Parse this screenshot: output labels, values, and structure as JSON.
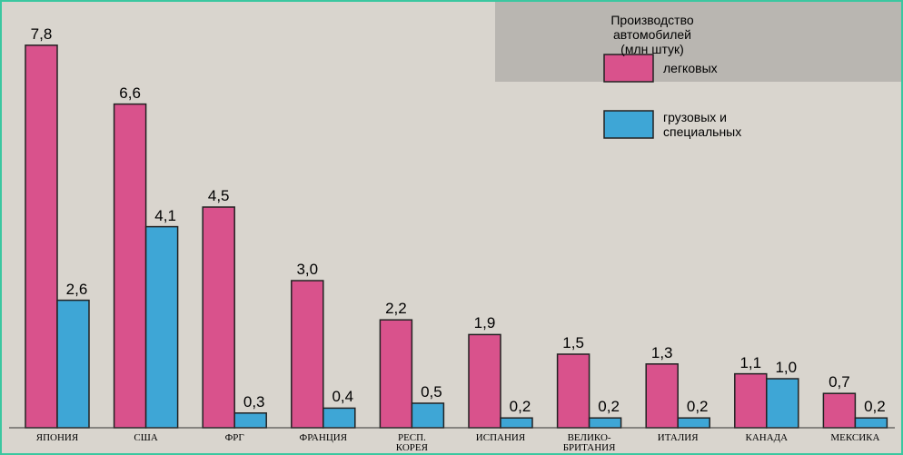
{
  "chart_data": {
    "type": "bar",
    "legend_title": "Производство автомобилей\n(млн штук)",
    "categories": [
      "ЯПОНИЯ",
      "США",
      "ФРГ",
      "ФРАНЦИЯ",
      "РЕСП.\nКОРЕЯ",
      "ИСПАНИЯ",
      "ВЕЛИКО-\nБРИТАНИЯ",
      "ИТАЛИЯ",
      "КАНАДА",
      "МЕКСИКА"
    ],
    "series": [
      {
        "name": "легковых",
        "color": "#d9528c",
        "values": [
          7.8,
          6.6,
          4.5,
          3.0,
          2.2,
          1.9,
          1.5,
          1.3,
          1.1,
          0.7
        ],
        "value_labels": [
          "7,8",
          "6,6",
          "4,5",
          "3,0",
          "2,2",
          "1,9",
          "1,5",
          "1,3",
          "1,1",
          "0,7"
        ]
      },
      {
        "name": "грузовых и\nспециальных",
        "color": "#3ea6d6",
        "values": [
          2.6,
          4.1,
          0.3,
          0.4,
          0.5,
          0.2,
          0.2,
          0.2,
          1.0,
          0.2
        ],
        "value_labels": [
          "2,6",
          "4,1",
          "0,3",
          "0,4",
          "0,5",
          "0,2",
          "0,2",
          "0,2",
          "1,0",
          "0,2"
        ]
      }
    ]
  }
}
